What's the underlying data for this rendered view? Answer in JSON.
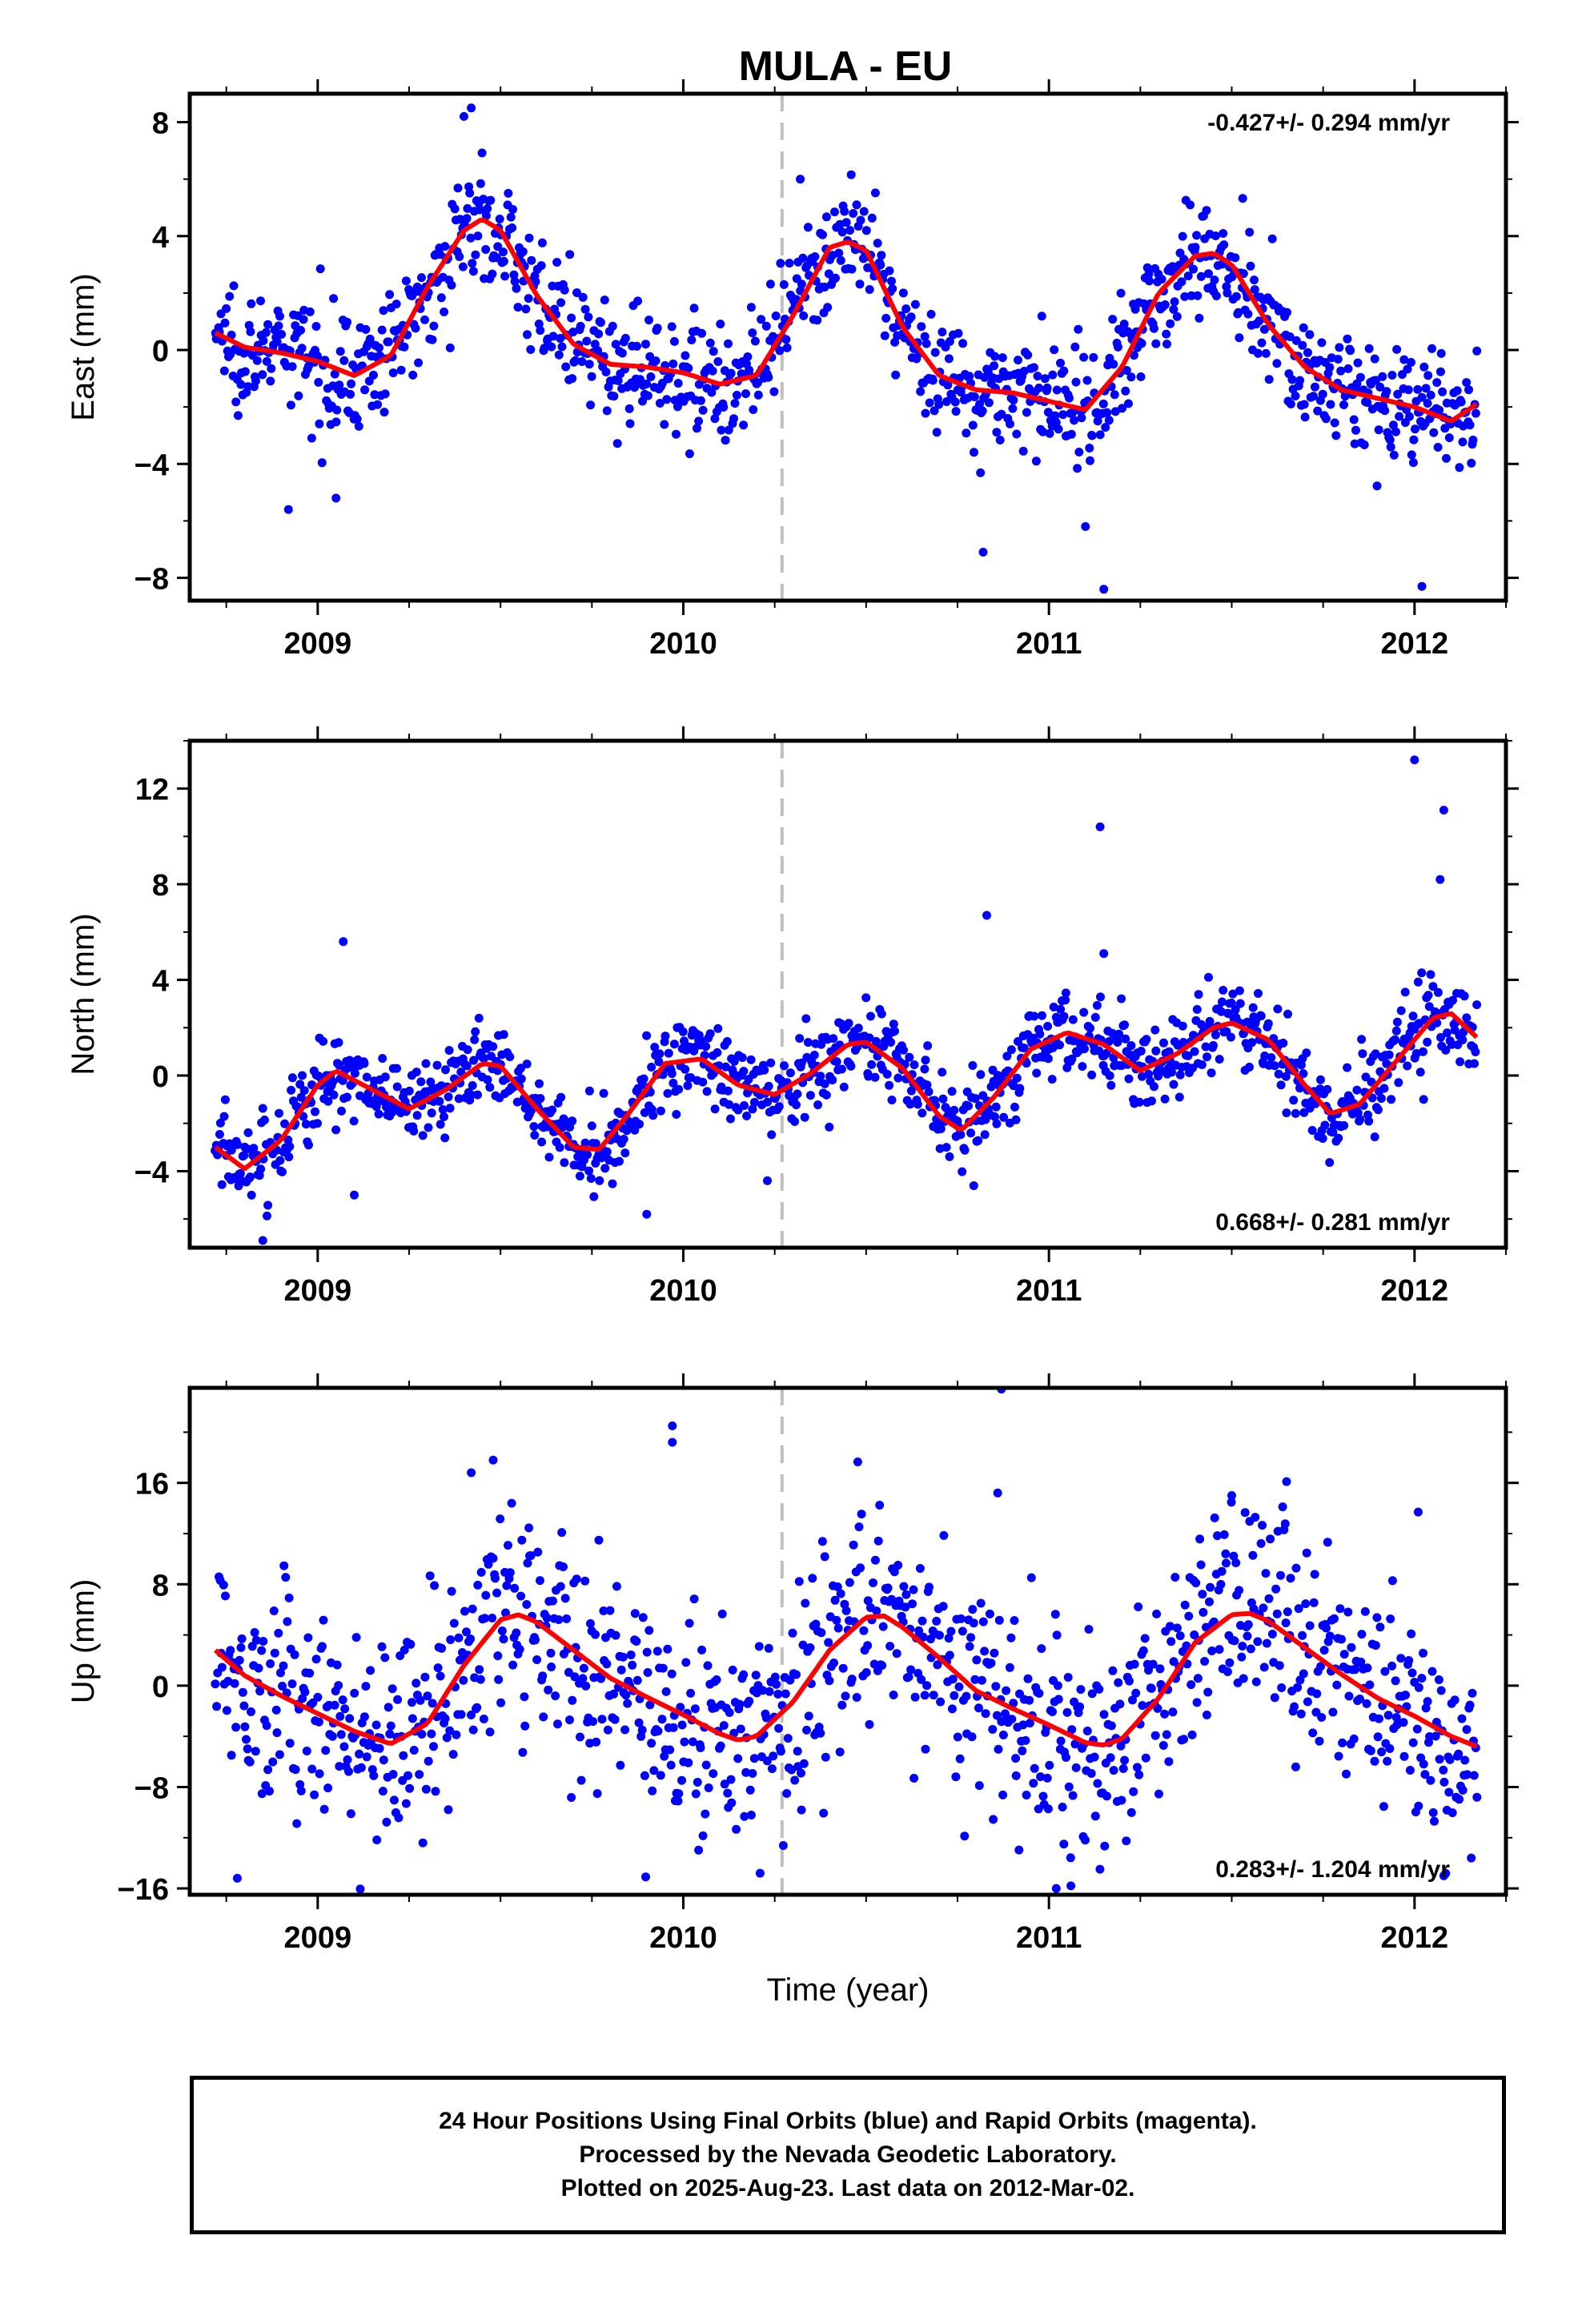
{
  "title": "MULA - EU",
  "colors": {
    "final_orbits": "#0000ff",
    "model": "#ff0000",
    "reference_line": "#c0c0c0",
    "frame": "#000000"
  },
  "chart_data": [
    {
      "type": "scatter",
      "component": "East",
      "ylabel": "East (mm)",
      "xlabel": "",
      "xlim": [
        2008.65,
        2012.25
      ],
      "ylim": [
        -8.8,
        9.0
      ],
      "yticks": [
        8,
        4,
        0,
        -4,
        -8
      ],
      "ytick_labels": [
        "8",
        "4",
        "0",
        "−4",
        "−8"
      ],
      "xticks": [
        2009,
        2010,
        2011,
        2012
      ],
      "xtick_labels": [
        "2009",
        "2010",
        "2011",
        "2012"
      ],
      "reference_line_x": 2010.27,
      "rate_text": "-0.427+/- 0.294 mm/yr",
      "rate_position": "top-right",
      "model_curve": {
        "name": "",
        "x": [
          2008.72,
          2008.8,
          2008.9,
          2009.0,
          2009.1,
          2009.2,
          2009.3,
          2009.4,
          2009.45,
          2009.5,
          2009.6,
          2009.7,
          2009.8,
          2009.9,
          2010.0,
          2010.1,
          2010.2,
          2010.3,
          2010.4,
          2010.45,
          2010.5,
          2010.6,
          2010.7,
          2010.8,
          2010.9,
          2011.0,
          2011.1,
          2011.2,
          2011.3,
          2011.4,
          2011.45,
          2011.5,
          2011.6,
          2011.7,
          2011.8,
          2011.9,
          2012.0,
          2012.1,
          2012.17
        ],
        "y": [
          0.6,
          0.1,
          -0.1,
          -0.4,
          -0.9,
          -0.2,
          2.2,
          4.2,
          4.6,
          4.2,
          1.9,
          0.2,
          -0.5,
          -0.6,
          -0.8,
          -1.2,
          -0.9,
          1.2,
          3.6,
          3.8,
          3.5,
          0.8,
          -0.9,
          -1.4,
          -1.5,
          -1.8,
          -2.1,
          -0.6,
          2.0,
          3.3,
          3.4,
          3.0,
          0.9,
          -0.6,
          -1.4,
          -1.7,
          -2.0,
          -2.5,
          -1.9
        ]
      },
      "points": {
        "name": "",
        "trend": -0.427,
        "anchor": [
          2010.5,
          0.0
        ],
        "seasonal_amplitude": 2.6,
        "seasonal_phase_year": 2009.45,
        "scatter": 1.0,
        "count": 1150,
        "outliers": [
          [
            2009.42,
            8.5
          ],
          [
            2009.4,
            8.2
          ],
          [
            2010.32,
            6.0
          ],
          [
            2011.15,
            -8.4
          ],
          [
            2012.02,
            -8.3
          ],
          [
            2010.82,
            -7.1
          ],
          [
            2008.92,
            -5.6
          ],
          [
            2009.05,
            -5.2
          ],
          [
            2011.1,
            -6.2
          ]
        ]
      }
    },
    {
      "type": "scatter",
      "component": "North",
      "ylabel": "North (mm)",
      "xlabel": "",
      "xlim": [
        2008.65,
        2012.25
      ],
      "ylim": [
        -7.2,
        14.0
      ],
      "yticks": [
        12,
        8,
        4,
        0,
        -4
      ],
      "ytick_labels": [
        "12",
        "8",
        "4",
        "0",
        "−4"
      ],
      "xticks": [
        2009,
        2010,
        2011,
        2012
      ],
      "xtick_labels": [
        "2009",
        "2010",
        "2011",
        "2012"
      ],
      "reference_line_x": 2010.27,
      "rate_text": "0.668+/- 0.281 mm/yr",
      "rate_position": "bottom-right",
      "model_curve": {
        "name": "",
        "x": [
          2008.72,
          2008.8,
          2008.9,
          2009.0,
          2009.05,
          2009.15,
          2009.25,
          2009.35,
          2009.45,
          2009.5,
          2009.6,
          2009.7,
          2009.77,
          2009.85,
          2009.95,
          2010.05,
          2010.15,
          2010.25,
          2010.35,
          2010.45,
          2010.5,
          2010.6,
          2010.7,
          2010.76,
          2010.85,
          2010.95,
          2011.05,
          2011.15,
          2011.25,
          2011.35,
          2011.45,
          2011.5,
          2011.6,
          2011.7,
          2011.77,
          2011.85,
          2011.95,
          2012.05,
          2012.1,
          2012.17
        ],
        "y": [
          -3.0,
          -3.9,
          -2.7,
          -0.4,
          0.2,
          -0.6,
          -1.4,
          -0.6,
          0.5,
          0.4,
          -1.4,
          -3.0,
          -3.1,
          -1.6,
          0.5,
          0.7,
          -0.4,
          -0.8,
          0.1,
          1.3,
          1.4,
          0.3,
          -1.7,
          -2.3,
          -0.9,
          1.1,
          1.8,
          1.3,
          0.2,
          0.9,
          2.0,
          2.2,
          1.5,
          -0.4,
          -1.6,
          -1.2,
          0.6,
          2.4,
          2.6,
          1.6
        ]
      },
      "points": {
        "name": "",
        "trend": 0.668,
        "anchor": [
          2010.5,
          0.0
        ],
        "seasonal_amplitude": 0.0,
        "seasonal_phase_year": 2009.5,
        "scatter": 0.9,
        "count": 1150,
        "outliers": [
          [
            2012.0,
            13.2
          ],
          [
            2012.08,
            11.1
          ],
          [
            2011.14,
            10.4
          ],
          [
            2012.07,
            8.2
          ],
          [
            2010.83,
            6.7
          ],
          [
            2009.07,
            5.6
          ],
          [
            2011.15,
            5.1
          ],
          [
            2008.85,
            -6.9
          ],
          [
            2009.1,
            -5.0
          ],
          [
            2010.23,
            -4.4
          ],
          [
            2009.9,
            -5.8
          ]
        ]
      }
    },
    {
      "type": "scatter",
      "component": "Up",
      "ylabel": "Up (mm)",
      "xlabel": "Time (year)",
      "xlim": [
        2008.65,
        2012.25
      ],
      "ylim": [
        -16.5,
        23.5
      ],
      "yticks": [
        16,
        8,
        0,
        -8,
        -16
      ],
      "ytick_labels": [
        "16",
        "8",
        "0",
        "−8",
        "−16"
      ],
      "xticks": [
        2009,
        2010,
        2011,
        2012
      ],
      "xtick_labels": [
        "2009",
        "2010",
        "2011",
        "2012"
      ],
      "reference_line_x": 2010.27,
      "rate_text": "0.283+/- 1.204 mm/yr",
      "rate_position": "bottom-right",
      "model_curve": {
        "name": "",
        "x": [
          2008.72,
          2008.8,
          2008.9,
          2009.0,
          2009.1,
          2009.2,
          2009.3,
          2009.4,
          2009.5,
          2009.55,
          2009.6,
          2009.7,
          2009.8,
          2009.9,
          2010.0,
          2010.1,
          2010.15,
          2010.2,
          2010.3,
          2010.4,
          2010.5,
          2010.55,
          2010.6,
          2010.7,
          2010.8,
          2010.9,
          2011.0,
          2011.1,
          2011.15,
          2011.2,
          2011.3,
          2011.4,
          2011.5,
          2011.55,
          2011.6,
          2011.7,
          2011.8,
          2011.9,
          2012.0,
          2012.1,
          2012.17
        ],
        "y": [
          2.8,
          0.8,
          -0.8,
          -2.2,
          -3.6,
          -4.6,
          -3.0,
          1.6,
          5.2,
          5.6,
          5.0,
          2.8,
          0.6,
          -0.9,
          -2.3,
          -3.8,
          -4.3,
          -4.0,
          -1.3,
          2.8,
          5.4,
          5.5,
          4.6,
          2.2,
          -0.4,
          -1.8,
          -3.1,
          -4.5,
          -4.7,
          -4.2,
          -1.0,
          3.4,
          5.6,
          5.7,
          5.1,
          3.0,
          0.9,
          -1.0,
          -2.4,
          -4.0,
          -4.8
        ]
      },
      "points": {
        "name": "",
        "trend": 0.283,
        "anchor": [
          2010.5,
          0.0
        ],
        "seasonal_amplitude": 0.0,
        "seasonal_phase_year": 2009.55,
        "scatter": 4.3,
        "count": 1100,
        "outliers": [
          [
            2010.87,
            23.4
          ],
          [
            2009.97,
            20.5
          ],
          [
            2009.97,
            19.2
          ],
          [
            2009.48,
            17.8
          ],
          [
            2011.65,
            16.1
          ],
          [
            2009.42,
            16.8
          ],
          [
            2010.86,
            15.2
          ],
          [
            2011.5,
            15.0
          ],
          [
            2012.01,
            13.7
          ],
          [
            2011.02,
            -16.0
          ],
          [
            2008.78,
            -15.2
          ],
          [
            2011.06,
            -15.8
          ],
          [
            2012.08,
            -15.0
          ],
          [
            2010.21,
            -14.8
          ]
        ]
      }
    }
  ],
  "footer": {
    "line1": "24 Hour Positions Using Final Orbits (blue) and Rapid Orbits (magenta).",
    "line2": "Processed by the Nevada Geodetic Laboratory.",
    "line3": "Plotted on 2025-Aug-23. Last data on 2012-Mar-02."
  }
}
